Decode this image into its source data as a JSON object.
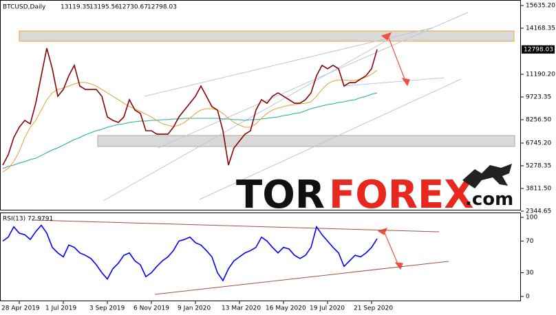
{
  "chart_data": {
    "type": "line",
    "title": "BTCUSD,Daily",
    "ohlc": [
      13119.35,
      13195.56,
      12730.67,
      12798.03
    ],
    "categories": [
      null,
      null,
      null,
      "28 Apr 2019",
      null,
      null,
      null,
      null,
      null,
      null,
      null,
      "1 Jul 2019",
      null,
      null,
      null,
      null,
      null,
      null,
      null,
      "3 Sep 2019",
      null,
      null,
      null,
      null,
      null,
      null,
      null,
      "6 Nov 2019",
      null,
      null,
      null,
      null,
      null,
      null,
      null,
      "9 Jan 2020",
      null,
      null,
      null,
      null,
      null,
      null,
      null,
      "13 Mar 2020",
      null,
      null,
      null,
      null,
      null,
      null,
      null,
      "16 May 2020",
      null,
      null,
      null,
      null,
      null,
      null,
      null,
      "19 Jul 2020",
      null,
      null,
      null,
      null,
      null,
      null,
      null,
      "21 Sep 2020",
      null
    ],
    "ylim": [
      2211.8,
      15990.8
    ],
    "yticks": [
      {
        "value": 15635.2,
        "label": "15635.20"
      },
      14168.35,
      {
        "value": 11190.2,
        "label": "11190.20"
      },
      9723.35,
      {
        "value": 8256.5,
        "label": "8256.50"
      },
      {
        "value": 6745.2,
        "label": "6745.20"
      },
      5278.35,
      {
        "value": 3811.5,
        "label": "3811.50"
      },
      2344.65
    ],
    "series": [
      {
        "color": "#8b0000",
        "values": [
          5318,
          5990,
          7100,
          7770,
          8210,
          7990,
          9320,
          11100,
          12880,
          11550,
          9770,
          10210,
          11100,
          11770,
          10430,
          10210,
          10210,
          10210,
          9770,
          8430,
          8210,
          8080,
          8430,
          9550,
          8880,
          8660,
          7540,
          7540,
          7320,
          7320,
          7320,
          7770,
          8430,
          8880,
          9320,
          9770,
          10430,
          9770,
          9100,
          8880,
          7540,
          5320,
          6430,
          6880,
          7320,
          7540,
          8880,
          9550,
          9320,
          9770,
          9990,
          9770,
          9550,
          9320,
          9320,
          9550,
          9990,
          11100,
          11770,
          11550,
          11770,
          11550,
          10430,
          10650,
          10650,
          10880,
          11100,
          11550,
          12798.03
        ]
      },
      {
        "color": "#e0a030",
        "values": [
          4880,
          5100,
          5550,
          6210,
          7100,
          7770,
          8210,
          8880,
          9550,
          9990,
          10210,
          10300,
          10430,
          10570,
          10660,
          10660,
          10570,
          10430,
          10210,
          9990,
          9770,
          9550,
          9320,
          9100,
          8970,
          8790,
          8610,
          8430,
          8210,
          7990,
          7900,
          7810,
          7900,
          8080,
          8350,
          8660,
          8880,
          8970,
          8970,
          8880,
          8660,
          8350,
          8080,
          7900,
          7770,
          7770,
          7990,
          8350,
          8660,
          8880,
          9010,
          9100,
          9190,
          9230,
          9280,
          9320,
          9410,
          9770,
          10210,
          10570,
          10750,
          10830,
          10830,
          10790,
          10790,
          10880,
          11010,
          11190,
          11460
        ]
      },
      {
        "color": "#20a8a0",
        "values": [
          5100,
          5234,
          5323,
          5456,
          5545,
          5678,
          5767,
          5945,
          6123,
          6301,
          6434,
          6612,
          6790,
          6968,
          7101,
          7279,
          7412,
          7545,
          7634,
          7768,
          7857,
          7946,
          7990,
          8079,
          8124,
          8168,
          8168,
          8212,
          8212,
          8257,
          8257,
          8301,
          8301,
          8346,
          8346,
          8346,
          8346,
          8346,
          8346,
          8346,
          8301,
          8301,
          8257,
          8257,
          8212,
          8257,
          8257,
          8301,
          8346,
          8390,
          8434,
          8523,
          8568,
          8657,
          8701,
          8835,
          8968,
          9057,
          9146,
          9235,
          9279,
          9368,
          9412,
          9501,
          9546,
          9679,
          9768,
          9901,
          9990
        ]
      }
    ],
    "rsi": {
      "label": "RSI(13)",
      "color": "#0000ff",
      "ylim": [
        0,
        100
      ],
      "yticks": [
        100,
        70,
        30,
        0
      ],
      "values": [
        70,
        75,
        88,
        80,
        78,
        72,
        82,
        90,
        80,
        62,
        55,
        50,
        65,
        62,
        55,
        52,
        48,
        40,
        30,
        22,
        35,
        42,
        52,
        55,
        45,
        40,
        25,
        30,
        38,
        45,
        50,
        58,
        70,
        72,
        75,
        68,
        65,
        58,
        50,
        30,
        20,
        35,
        45,
        50,
        55,
        58,
        62,
        75,
        70,
        62,
        55,
        62,
        60,
        52,
        48,
        52,
        62,
        88,
        78,
        70,
        62,
        55,
        38,
        45,
        52,
        50,
        55,
        62,
        72.9791
      ]
    },
    "watermark": [
      "TOR",
      "FOREX",
      ".com"
    ]
  }
}
